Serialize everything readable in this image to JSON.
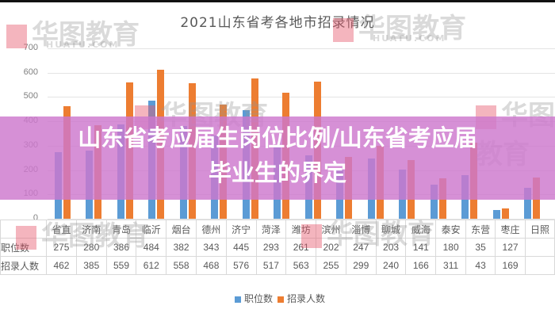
{
  "chart_data": {
    "type": "bar",
    "title": "2021山东省考各地市招录情况",
    "xlabel": "",
    "ylabel": "",
    "ylim": [
      0,
      700
    ],
    "yticks": [
      0,
      100,
      200,
      300,
      400,
      500,
      600,
      700
    ],
    "grid": true,
    "legend_position": "bottom",
    "categories": [
      "省直",
      "济南",
      "青岛",
      "临沂",
      "烟台",
      "德州",
      "济宁",
      "菏泽",
      "潍坊",
      "滨州",
      "淄博",
      "聊城",
      "威海",
      "泰安",
      "东营",
      "枣庄",
      "日照"
    ],
    "series": [
      {
        "name": "职位数",
        "color": "#5b9bd5",
        "values": [
          275,
          280,
          386,
          484,
          382,
          343,
          445,
          293,
          261,
          202,
          247,
          203,
          141,
          180,
          35,
          127,
          null
        ]
      },
      {
        "name": "招录人数",
        "color": "#ed7d31",
        "values": [
          462,
          385,
          559,
          612,
          558,
          468,
          576,
          517,
          563,
          255,
          299,
          240,
          166,
          311,
          43,
          169,
          null
        ]
      }
    ]
  },
  "title": "2021山东省考各地市招录情况",
  "table": {
    "row_headers": [
      "职位数",
      "招录人数"
    ]
  },
  "legend": {
    "items": [
      {
        "label": "职位数",
        "color": "#5b9bd5"
      },
      {
        "label": "招录人数",
        "color": "#ed7d31"
      }
    ]
  },
  "watermark": {
    "brand": "华图教育",
    "domain": "HUATU.COM",
    "since": "SINCE 2001"
  },
  "banner": {
    "line1": "山东省考应届生岗位比例/山东省考应届",
    "line2": "毕业生的界定",
    "color": "#cd78cd"
  }
}
